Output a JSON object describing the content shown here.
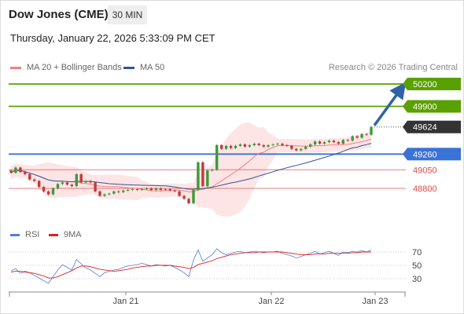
{
  "header": {
    "title": "Dow Jones (CME)",
    "interval": "30 MIN",
    "timestamp": "Thursday, January 22, 2026 5:33:09 PM CET"
  },
  "legend": {
    "ma_bollinger": "MA 20 + Bollinger Bands",
    "ma50": "MA 50",
    "copyright": "Research © 2026 Trading Central",
    "rsi": "RSI",
    "rsi_ma": "9MA"
  },
  "colors": {
    "resistance": "#5aa000",
    "support": "#3b72d6",
    "minor_support": "#e34848",
    "last_price": "#333333",
    "ma20": "#f08080",
    "ma50": "#2f5597",
    "bollinger_fill": "#fde1e1",
    "candle_up": "#3c9a3c",
    "candle_down": "#c33a3a",
    "rsi_line": "#4f7fd9",
    "rsi_ma": "#e02020",
    "arrow": "#2f62a8"
  },
  "chart_data": {
    "type": "candlestick",
    "instrument": "Dow Jones (CME)",
    "timeframe": "30 MIN",
    "x_labels": [
      "Jan 21",
      "Jan 22",
      "Jan 23"
    ],
    "price_levels": [
      {
        "label": "50200",
        "value": 50200,
        "kind": "resistance"
      },
      {
        "label": "49900",
        "value": 49900,
        "kind": "resistance"
      },
      {
        "label": "49624",
        "value": 49624,
        "kind": "last_price"
      },
      {
        "label": "49260",
        "value": 49260,
        "kind": "support"
      },
      {
        "label": "49050",
        "value": 49050,
        "kind": "minor_support"
      },
      {
        "label": "48800",
        "value": 48800,
        "kind": "minor_support"
      }
    ],
    "price_series": [
      {
        "o": 49040,
        "c": 49010
      },
      {
        "o": 49010,
        "c": 49080
      },
      {
        "o": 49080,
        "c": 49020
      },
      {
        "o": 49020,
        "c": 48990
      },
      {
        "o": 48990,
        "c": 48920
      },
      {
        "o": 48920,
        "c": 48900
      },
      {
        "o": 48900,
        "c": 48820
      },
      {
        "o": 48820,
        "c": 48760
      },
      {
        "o": 48760,
        "c": 48720
      },
      {
        "o": 48720,
        "c": 48800
      },
      {
        "o": 48800,
        "c": 48860
      },
      {
        "o": 48860,
        "c": 48880
      },
      {
        "o": 48880,
        "c": 48850
      },
      {
        "o": 48850,
        "c": 48830
      },
      {
        "o": 48830,
        "c": 48990
      },
      {
        "o": 48990,
        "c": 48880
      },
      {
        "o": 48880,
        "c": 48900
      },
      {
        "o": 48900,
        "c": 48880
      },
      {
        "o": 48880,
        "c": 48760
      },
      {
        "o": 48760,
        "c": 48700
      },
      {
        "o": 48700,
        "c": 48720
      },
      {
        "o": 48720,
        "c": 48730
      },
      {
        "o": 48730,
        "c": 48760
      },
      {
        "o": 48760,
        "c": 48750
      },
      {
        "o": 48750,
        "c": 48770
      },
      {
        "o": 48770,
        "c": 48780
      },
      {
        "o": 48780,
        "c": 48790
      },
      {
        "o": 48790,
        "c": 48780
      },
      {
        "o": 48780,
        "c": 48790
      },
      {
        "o": 48790,
        "c": 48800
      },
      {
        "o": 48800,
        "c": 48780
      },
      {
        "o": 48780,
        "c": 48800
      },
      {
        "o": 48800,
        "c": 48780
      },
      {
        "o": 48780,
        "c": 48790
      },
      {
        "o": 48790,
        "c": 48770
      },
      {
        "o": 48770,
        "c": 48760
      },
      {
        "o": 48760,
        "c": 48700
      },
      {
        "o": 48700,
        "c": 48660
      },
      {
        "o": 48660,
        "c": 48600
      },
      {
        "o": 48600,
        "c": 48780
      },
      {
        "o": 48780,
        "c": 49150
      },
      {
        "o": 49150,
        "c": 48830
      },
      {
        "o": 48830,
        "c": 49040
      },
      {
        "o": 49040,
        "c": 49050
      },
      {
        "o": 49050,
        "c": 49380
      },
      {
        "o": 49380,
        "c": 49330
      },
      {
        "o": 49330,
        "c": 49370
      },
      {
        "o": 49370,
        "c": 49340
      },
      {
        "o": 49340,
        "c": 49370
      },
      {
        "o": 49370,
        "c": 49390
      },
      {
        "o": 49390,
        "c": 49360
      },
      {
        "o": 49360,
        "c": 49380
      },
      {
        "o": 49380,
        "c": 49400
      },
      {
        "o": 49400,
        "c": 49380
      },
      {
        "o": 49380,
        "c": 49360
      },
      {
        "o": 49360,
        "c": 49380
      },
      {
        "o": 49380,
        "c": 49390
      },
      {
        "o": 49390,
        "c": 49400
      },
      {
        "o": 49400,
        "c": 49380
      },
      {
        "o": 49380,
        "c": 49370
      },
      {
        "o": 49370,
        "c": 49330
      },
      {
        "o": 49330,
        "c": 49310
      },
      {
        "o": 49310,
        "c": 49330
      },
      {
        "o": 49330,
        "c": 49360
      },
      {
        "o": 49360,
        "c": 49390
      },
      {
        "o": 49390,
        "c": 49430
      },
      {
        "o": 49430,
        "c": 49400
      },
      {
        "o": 49400,
        "c": 49420
      },
      {
        "o": 49420,
        "c": 49440
      },
      {
        "o": 49440,
        "c": 49420
      },
      {
        "o": 49420,
        "c": 49400
      },
      {
        "o": 49400,
        "c": 49450
      },
      {
        "o": 49450,
        "c": 49440
      },
      {
        "o": 49440,
        "c": 49500
      },
      {
        "o": 49500,
        "c": 49480
      },
      {
        "o": 49480,
        "c": 49530
      },
      {
        "o": 49530,
        "c": 49520
      },
      {
        "o": 49520,
        "c": 49624
      }
    ],
    "forecast_target": 50200,
    "rsi_levels": [
      70,
      50,
      30
    ],
    "rsi": [
      42,
      45,
      38,
      41,
      39,
      35,
      31,
      27,
      23,
      33,
      43,
      51,
      47,
      43,
      59,
      52,
      46,
      43,
      38,
      33,
      39,
      41,
      43,
      44,
      47,
      49,
      50,
      51,
      53,
      51,
      49,
      51,
      50,
      49,
      50,
      47,
      43,
      39,
      33,
      58,
      73,
      56,
      61,
      66,
      75,
      69,
      66,
      68,
      70,
      71,
      69,
      70,
      71,
      70,
      69,
      70,
      70,
      71,
      68,
      66,
      64,
      61,
      63,
      66,
      68,
      71,
      67,
      69,
      71,
      68,
      65,
      70,
      69,
      71,
      70,
      72,
      70,
      73
    ],
    "rsi_ma": [
      40,
      41,
      41,
      40,
      39,
      38,
      36,
      34,
      31,
      31,
      33,
      36,
      39,
      42,
      46,
      49,
      49,
      48,
      46,
      44,
      43,
      42,
      41,
      42,
      43,
      44,
      46,
      47,
      48,
      49,
      49,
      50,
      50,
      50,
      50,
      49,
      48,
      47,
      45,
      47,
      51,
      53,
      55,
      57,
      60,
      62,
      64,
      66,
      67,
      68,
      69,
      69,
      69,
      70,
      70,
      70,
      70,
      70,
      70,
      69,
      68,
      67,
      66,
      66,
      66,
      67,
      67,
      67,
      68,
      68,
      68,
      68,
      68,
      69,
      69,
      70,
      70,
      70
    ]
  }
}
